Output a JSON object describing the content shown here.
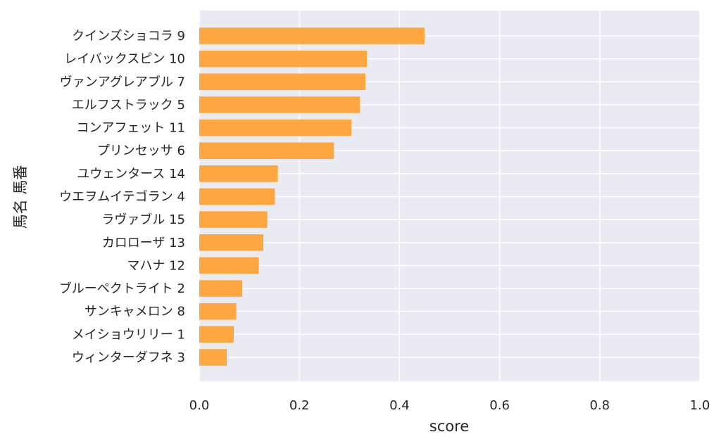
{
  "chart_data": {
    "type": "bar",
    "orientation": "horizontal",
    "categories": [
      "クインズショコラ 9",
      "レイバックスピン 10",
      "ヴァンアグレアブル 7",
      "エルフストラック 5",
      "コンアフェット 11",
      "プリンセッサ 6",
      "ユウェンタース 14",
      "ウエヲムイテゴラン 4",
      "ラヴァブル 15",
      "カロローザ 13",
      "マハナ 12",
      "ブルーペクトライト 2",
      "サンキャメロン 8",
      "メイショウリリー 1",
      "ウィンターダフネ 3"
    ],
    "values": [
      0.45,
      0.335,
      0.332,
      0.321,
      0.304,
      0.269,
      0.157,
      0.151,
      0.136,
      0.128,
      0.119,
      0.086,
      0.074,
      0.069,
      0.055
    ],
    "xlabel": "score",
    "ylabel": "馬名 馬番",
    "xlim": [
      0,
      1.0
    ],
    "xticks": [
      "0.0",
      "0.2",
      "0.4",
      "0.6",
      "0.8",
      "1.0"
    ],
    "grid": true,
    "colors": {
      "bar": "#FFA030",
      "plot_background": "#EAEAF2",
      "grid": "#FFFFFF",
      "text": "#262626"
    }
  }
}
